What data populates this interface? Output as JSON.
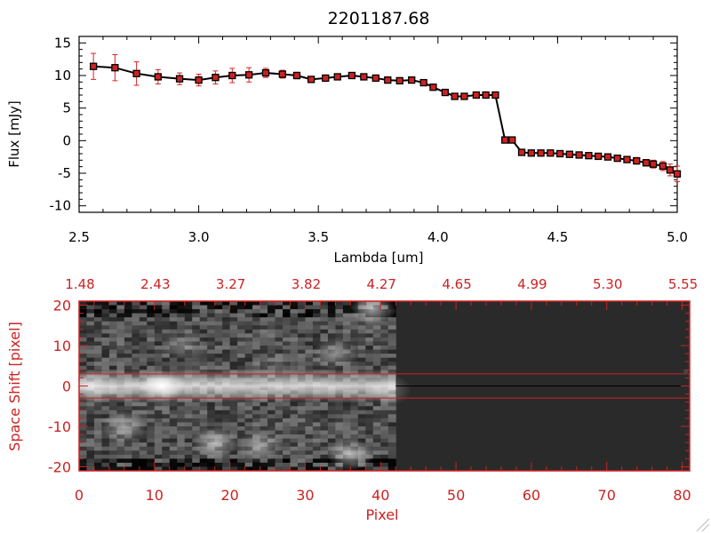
{
  "chart_data": [
    {
      "type": "line",
      "title": "2201187.68",
      "xlabel": "Lambda [um]",
      "ylabel": "Flux [mJy]",
      "xlim": [
        2.5,
        5.0
      ],
      "ylim": [
        -11,
        16
      ],
      "x_ticks": [
        2.5,
        3.0,
        3.5,
        4.0,
        4.5,
        5.0
      ],
      "x_tick_labels": [
        "2.5",
        "3.0",
        "3.5",
        "4.0",
        "4.5",
        "5.0"
      ],
      "y_ticks": [
        -10,
        -5,
        0,
        5,
        10,
        15
      ],
      "y_tick_labels": [
        "-10",
        "-5",
        "0",
        "5",
        "10",
        "15"
      ],
      "grid": false,
      "legend": "none",
      "line_color": "#000000",
      "marker_color": "#cc2222",
      "errorbar_color": "#dd2222",
      "series": [
        {
          "x": [
            2.56,
            2.65,
            2.74,
            2.83,
            2.92,
            3.0,
            3.07,
            3.14,
            3.21,
            3.28,
            3.35,
            3.41,
            3.47,
            3.53,
            3.58,
            3.64,
            3.69,
            3.74,
            3.79,
            3.84,
            3.89,
            3.94,
            3.98,
            4.03,
            4.07,
            4.11,
            4.16,
            4.2,
            4.24,
            4.28,
            4.31,
            4.35,
            4.39,
            4.43,
            4.47,
            4.51,
            4.55,
            4.59,
            4.63,
            4.67,
            4.71,
            4.75,
            4.79,
            4.83,
            4.87,
            4.9,
            4.94,
            4.97,
            5.0
          ],
          "y": [
            11.4,
            11.2,
            10.3,
            9.8,
            9.5,
            9.3,
            9.7,
            10.0,
            10.1,
            10.4,
            10.2,
            10.0,
            9.4,
            9.6,
            9.8,
            10.0,
            9.8,
            9.6,
            9.3,
            9.2,
            9.3,
            8.9,
            8.2,
            7.4,
            6.8,
            6.8,
            7.0,
            7.0,
            7.0,
            0.1,
            0.1,
            -1.8,
            -1.9,
            -1.9,
            -1.9,
            -2.0,
            -2.1,
            -2.2,
            -2.3,
            -2.4,
            -2.5,
            -2.7,
            -2.9,
            -3.1,
            -3.4,
            -3.6,
            -3.9,
            -4.5,
            -5.1
          ],
          "yerr": [
            2.0,
            2.0,
            1.8,
            1.1,
            0.9,
            0.9,
            1.0,
            1.1,
            1.1,
            0.7,
            0.6,
            0.5,
            0.4,
            0.4,
            0.4,
            0.4,
            0.4,
            0.4,
            0.4,
            0.4,
            0.4,
            0.4,
            0.4,
            0.4,
            0.4,
            0.4,
            0.4,
            0.4,
            0.4,
            0.4,
            0.4,
            0.4,
            0.4,
            0.4,
            0.4,
            0.4,
            0.4,
            0.4,
            0.4,
            0.4,
            0.4,
            0.4,
            0.4,
            0.5,
            0.5,
            0.6,
            0.7,
            0.9,
            1.2
          ]
        }
      ]
    },
    {
      "type": "heatmap",
      "xlabel": "Pixel",
      "ylabel": "Space Shift [pixel]",
      "xlim": [
        0,
        81
      ],
      "ylim": [
        -21,
        21
      ],
      "x_ticks": [
        0,
        10,
        20,
        30,
        40,
        50,
        60,
        70,
        80
      ],
      "x_tick_labels": [
        "0",
        "10",
        "20",
        "30",
        "40",
        "50",
        "60",
        "70",
        "80"
      ],
      "y_ticks": [
        -20,
        -10,
        0,
        10,
        20
      ],
      "y_tick_labels": [
        "-20",
        "-10",
        "0",
        "10",
        "20"
      ],
      "top_axis_labels": [
        "1.48",
        "2.43",
        "3.27",
        "3.82",
        "4.27",
        "4.65",
        "4.99",
        "5.30",
        "5.55"
      ],
      "extraction_window": [
        -3,
        3
      ],
      "trace_y": 0,
      "data_extent_pixels": [
        0,
        42
      ],
      "axis_color": "#cc2222",
      "background_color": "#2a2a2a",
      "blobs": [
        {
          "x": 11,
          "y": 0,
          "intensity": 1.0
        },
        {
          "x": 2,
          "y": 0,
          "intensity": 0.45
        },
        {
          "x": 6,
          "y": -10,
          "intensity": 0.5
        },
        {
          "x": 18,
          "y": -14,
          "intensity": 0.55
        },
        {
          "x": 24,
          "y": -15,
          "intensity": 0.45
        },
        {
          "x": 36,
          "y": -17,
          "intensity": 0.6
        },
        {
          "x": 39,
          "y": 19,
          "intensity": 0.6
        },
        {
          "x": 34,
          "y": 8,
          "intensity": 0.4
        },
        {
          "x": 14,
          "y": 10,
          "intensity": 0.25
        },
        {
          "x": 26,
          "y": 5,
          "intensity": 0.2
        },
        {
          "x": 41,
          "y": -1,
          "intensity": 0.3
        }
      ]
    }
  ]
}
